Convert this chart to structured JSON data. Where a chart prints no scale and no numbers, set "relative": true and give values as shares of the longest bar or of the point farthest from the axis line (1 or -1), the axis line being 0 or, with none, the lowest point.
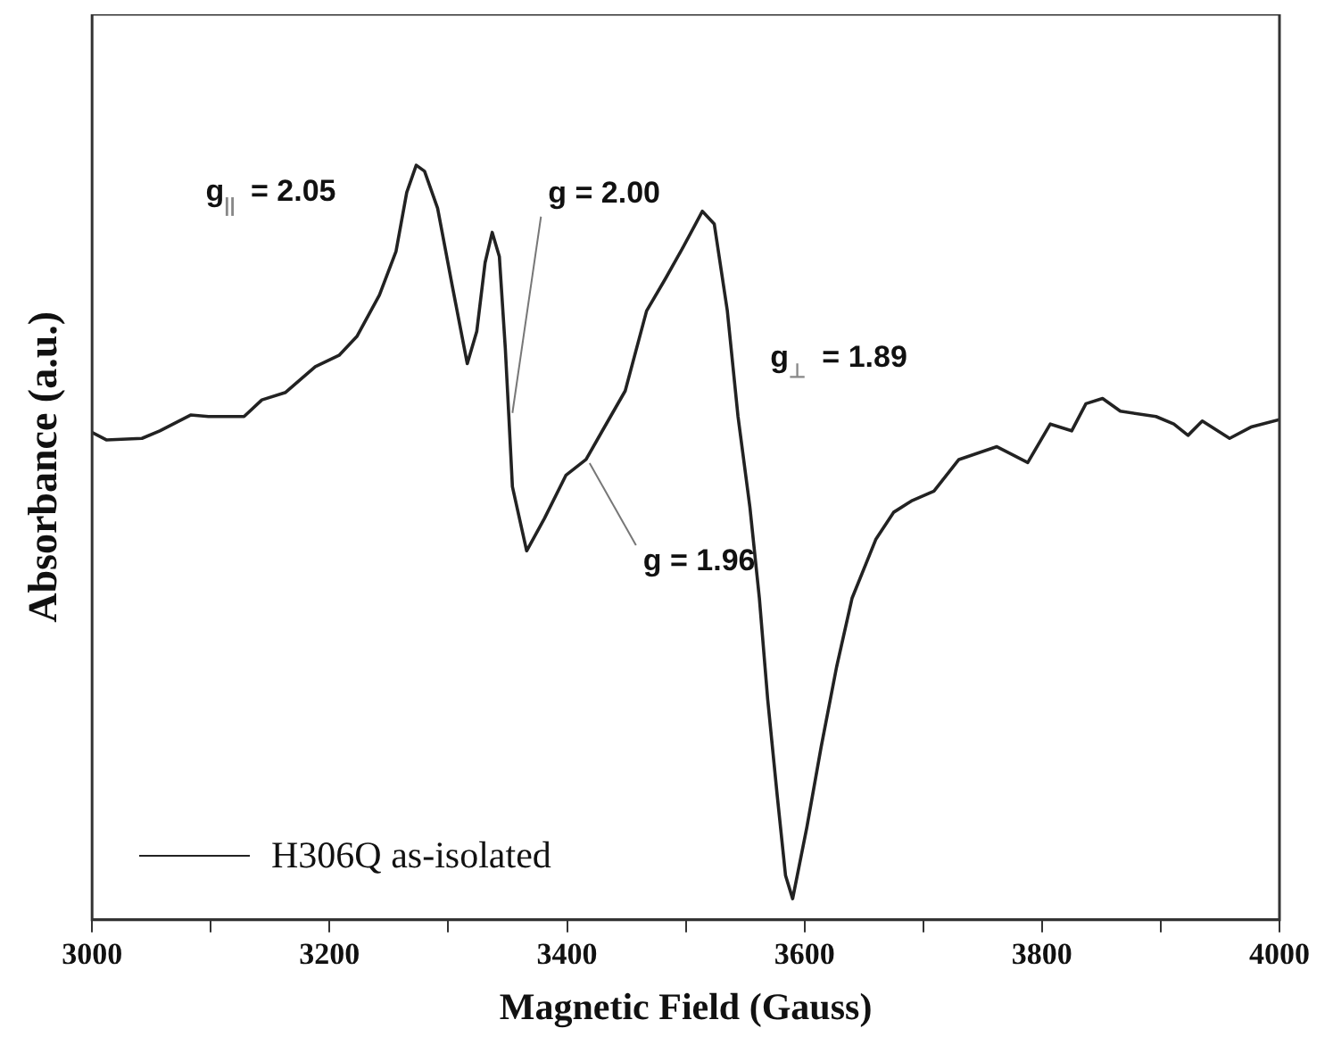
{
  "chart_data": {
    "type": "line",
    "xlabel": "Magnetic Field (Gauss)",
    "ylabel": "Absorbance (a.u.)",
    "relative": true,
    "xlim": [
      3000,
      4000
    ],
    "xticks": [
      3000,
      {
        "value": 3100,
        "label": null
      },
      3200,
      {
        "value": 3300,
        "label": null
      },
      3400,
      {
        "value": 3500,
        "label": null
      },
      3600,
      {
        "value": 3700,
        "label": null
      },
      3800,
      {
        "value": 3900,
        "label": null
      },
      4000
    ],
    "grid": false,
    "legend": "bottom left",
    "marker": "none",
    "line_style": "solid",
    "series": [
      {
        "name": "H306Q as-isolated",
        "color": "#222222",
        "x": [
          3000,
          3012,
          3042,
          3057,
          3083,
          3098,
          3128,
          3143,
          3163,
          3188,
          3208,
          3223,
          3242,
          3256,
          3265,
          3273,
          3280,
          3291,
          3303,
          3316,
          3324,
          3331,
          3337,
          3343,
          3348,
          3351,
          3354,
          3366,
          3381,
          3399,
          3416,
          3429,
          3449,
          3467,
          3483,
          3498,
          3514,
          3524,
          3535,
          3544,
          3554,
          3562,
          3569,
          3577,
          3584,
          3590,
          3602,
          3614,
          3627,
          3640,
          3660,
          3675,
          3690,
          3709,
          3730,
          3762,
          3788,
          3807,
          3825,
          3837,
          3851,
          3866,
          3896,
          3911,
          3923,
          3935,
          3958,
          3976,
          4000
        ],
        "values": [
          0.646,
          0.636,
          0.638,
          0.648,
          0.669,
          0.667,
          0.667,
          0.689,
          0.699,
          0.733,
          0.748,
          0.773,
          0.828,
          0.886,
          0.964,
          1.0,
          0.992,
          0.943,
          0.843,
          0.737,
          0.78,
          0.871,
          0.911,
          0.879,
          0.758,
          0.667,
          0.574,
          0.489,
          0.532,
          0.589,
          0.61,
          0.646,
          0.701,
          0.807,
          0.85,
          0.892,
          0.939,
          0.922,
          0.807,
          0.667,
          0.547,
          0.426,
          0.292,
          0.165,
          0.059,
          0.028,
          0.123,
          0.229,
          0.335,
          0.426,
          0.504,
          0.54,
          0.555,
          0.568,
          0.61,
          0.627,
          0.606,
          0.657,
          0.648,
          0.684,
          0.691,
          0.674,
          0.667,
          0.657,
          0.642,
          0.661,
          0.638,
          0.653,
          0.663
        ]
      }
    ],
    "annotations": [
      {
        "text": "g$_{||}$ = 2.05",
        "x": 3273,
        "y": 1.0
      },
      {
        "text": "g = 2.00",
        "x": 3351,
        "y": 0.667
      },
      {
        "text": "g = 1.96",
        "x": 3416,
        "y": 0.61
      },
      {
        "text": "g$_{⊥}$ = 1.89",
        "x": 3544,
        "y": 0.667
      }
    ]
  }
}
